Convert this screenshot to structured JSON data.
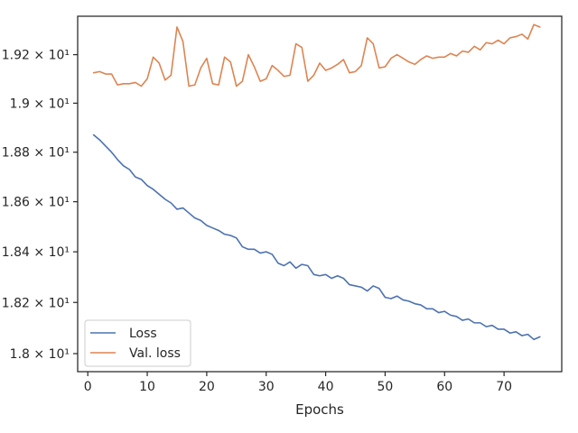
{
  "chart_data": {
    "type": "line",
    "title": "",
    "xlabel": "Epochs",
    "ylabel": "",
    "yscale": "log",
    "xlim": [
      -1.7,
      79.7
    ],
    "ylim": [
      17.93,
      19.36
    ],
    "grid": false,
    "legend_position": "lower-left",
    "x_ticks": [
      0,
      10,
      20,
      30,
      40,
      50,
      60,
      70
    ],
    "x_tick_labels": [
      "0",
      "10",
      "20",
      "30",
      "40",
      "50",
      "60",
      "70"
    ],
    "y_ticks": [
      18.0,
      18.2,
      18.4,
      18.6,
      18.8,
      19.0,
      19.2
    ],
    "y_tick_labels": [
      "1.8 × 10¹",
      "1.82 × 10¹",
      "1.84 × 10¹",
      "1.86 × 10¹",
      "1.88 × 10¹",
      "1.9 × 10¹",
      "1.92 × 10¹"
    ],
    "x": [
      1,
      2,
      3,
      4,
      5,
      6,
      7,
      8,
      9,
      10,
      11,
      12,
      13,
      14,
      15,
      16,
      17,
      18,
      19,
      20,
      21,
      22,
      23,
      24,
      25,
      26,
      27,
      28,
      29,
      30,
      31,
      32,
      33,
      34,
      35,
      36,
      37,
      38,
      39,
      40,
      41,
      42,
      43,
      44,
      45,
      46,
      47,
      48,
      49,
      50,
      51,
      52,
      53,
      54,
      55,
      56,
      57,
      58,
      59,
      60,
      61,
      62,
      63,
      64,
      65,
      66,
      67,
      68,
      69,
      70,
      71,
      72,
      73,
      74,
      75,
      76
    ],
    "series": [
      {
        "name": "Loss",
        "color": "#4c72b0",
        "values": [
          18.87,
          18.85,
          18.825,
          18.8,
          18.77,
          18.745,
          18.73,
          18.7,
          18.69,
          18.665,
          18.65,
          18.63,
          18.61,
          18.595,
          18.57,
          18.575,
          18.555,
          18.535,
          18.525,
          18.505,
          18.495,
          18.485,
          18.47,
          18.465,
          18.455,
          18.42,
          18.41,
          18.41,
          18.395,
          18.4,
          18.39,
          18.355,
          18.345,
          18.36,
          18.335,
          18.35,
          18.345,
          18.31,
          18.305,
          18.31,
          18.295,
          18.305,
          18.295,
          18.27,
          18.265,
          18.26,
          18.245,
          18.265,
          18.255,
          18.22,
          18.215,
          18.225,
          18.21,
          18.205,
          18.195,
          18.19,
          18.175,
          18.175,
          18.16,
          18.165,
          18.15,
          18.145,
          18.13,
          18.135,
          18.12,
          18.12,
          18.105,
          18.11,
          18.095,
          18.095,
          18.08,
          18.085,
          18.07,
          18.075,
          18.055,
          18.065
        ]
      },
      {
        "name": "Val. loss",
        "color": "#dd8452",
        "values": [
          19.125,
          19.13,
          19.12,
          19.12,
          19.075,
          19.08,
          19.08,
          19.085,
          19.07,
          19.1,
          19.19,
          19.165,
          19.095,
          19.115,
          19.315,
          19.255,
          19.07,
          19.075,
          19.145,
          19.185,
          19.08,
          19.075,
          19.19,
          19.17,
          19.07,
          19.09,
          19.2,
          19.15,
          19.09,
          19.1,
          19.155,
          19.135,
          19.11,
          19.115,
          19.245,
          19.23,
          19.09,
          19.115,
          19.165,
          19.135,
          19.145,
          19.16,
          19.18,
          19.125,
          19.13,
          19.155,
          19.27,
          19.245,
          19.145,
          19.15,
          19.185,
          19.2,
          19.185,
          19.17,
          19.16,
          19.18,
          19.195,
          19.185,
          19.19,
          19.19,
          19.205,
          19.195,
          19.215,
          19.21,
          19.235,
          19.22,
          19.25,
          19.245,
          19.26,
          19.245,
          19.27,
          19.275,
          19.285,
          19.265,
          19.325,
          19.315
        ]
      }
    ]
  }
}
